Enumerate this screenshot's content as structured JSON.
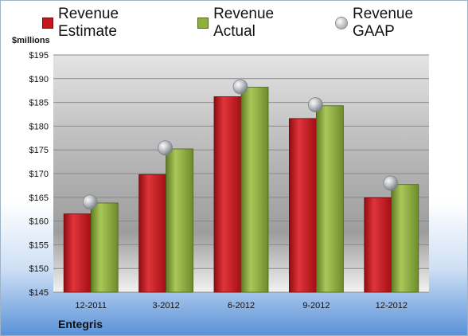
{
  "legend": {
    "estimate_label": "Revenue Estimate",
    "actual_label": "Revenue Actual",
    "gaap_label": "Revenue GAAP"
  },
  "unit_label": "$millions",
  "company": "Entegris",
  "colors": {
    "estimate": "#c5161d",
    "actual": "#8fb13c",
    "gaap": "#b9bcc1"
  },
  "chart_data": {
    "type": "bar",
    "categories": [
      "12-2011",
      "3-2012",
      "6-2012",
      "9-2012",
      "12-2012"
    ],
    "series": [
      {
        "name": "Revenue Estimate",
        "values": [
          161.5,
          169.8,
          186.2,
          181.6,
          164.9
        ]
      },
      {
        "name": "Revenue Actual",
        "values": [
          163.8,
          175.2,
          188.2,
          184.3,
          167.7
        ]
      },
      {
        "name": "Revenue GAAP",
        "values": [
          164.0,
          175.4,
          188.3,
          184.5,
          168.0
        ]
      }
    ],
    "ylim": [
      145,
      195
    ],
    "yticks": [
      "$145",
      "$150",
      "$155",
      "$160",
      "$165",
      "$170",
      "$175",
      "$180",
      "$185",
      "$190",
      "$195"
    ],
    "ylabel": "$millions",
    "grid": true,
    "legend_position": "top"
  }
}
